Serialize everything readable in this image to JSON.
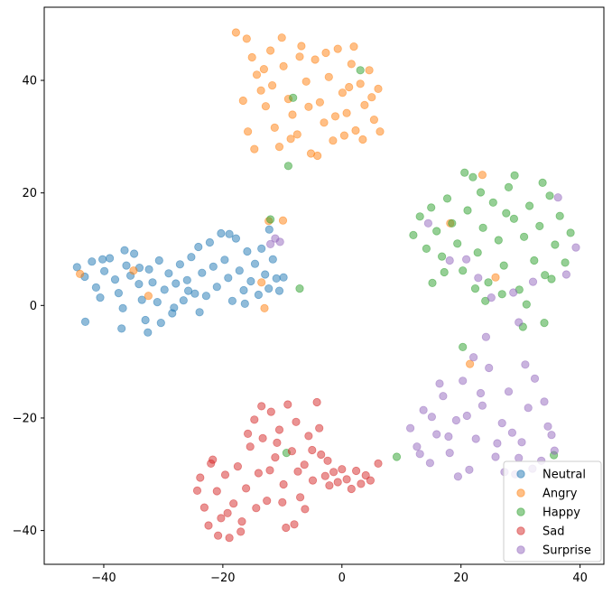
{
  "chart_data": {
    "type": "scatter",
    "title": "",
    "xlabel": "",
    "ylabel": "",
    "xlim": [
      -50,
      44
    ],
    "ylim": [
      -46,
      53
    ],
    "xticks": [
      -40,
      -20,
      0,
      20,
      40
    ],
    "yticks": [
      -40,
      -20,
      0,
      20,
      40
    ],
    "tick_labels": {
      "x": [
        "−40",
        "−20",
        "0",
        "20",
        "40"
      ],
      "y": [
        "−40",
        "−20",
        "0",
        "20",
        "40"
      ]
    },
    "grid": false,
    "legend_position": "lower-right",
    "marker_alpha": 0.5,
    "series": [
      {
        "name": "Neutral",
        "color": "#1f77b4",
        "points": [
          [
            -44.5,
            6.8
          ],
          [
            -43.2,
            5.1
          ],
          [
            -42.0,
            7.8
          ],
          [
            -41.3,
            3.2
          ],
          [
            -40.6,
            1.4
          ],
          [
            -39.9,
            6.1
          ],
          [
            -39.0,
            8.4
          ],
          [
            -38.1,
            4.6
          ],
          [
            -37.5,
            2.2
          ],
          [
            -36.8,
            -0.5
          ],
          [
            -36.2,
            7.1
          ],
          [
            -35.5,
            5.3
          ],
          [
            -34.9,
            9.2
          ],
          [
            -34.1,
            3.8
          ],
          [
            -33.6,
            1.0
          ],
          [
            -33.0,
            -2.6
          ],
          [
            -32.4,
            6.4
          ],
          [
            -31.8,
            4.1
          ],
          [
            -31.0,
            0.6
          ],
          [
            -30.4,
            -3.1
          ],
          [
            -29.8,
            2.8
          ],
          [
            -29.1,
            5.7
          ],
          [
            -28.5,
            -1.4
          ],
          [
            -27.9,
            3.9
          ],
          [
            -27.2,
            7.3
          ],
          [
            -26.6,
            0.9
          ],
          [
            -26.0,
            4.5
          ],
          [
            -25.3,
            8.6
          ],
          [
            -24.7,
            2.1
          ],
          [
            -24.1,
            10.4
          ],
          [
            -23.5,
            5.8
          ],
          [
            -22.8,
            1.7
          ],
          [
            -22.2,
            11.2
          ],
          [
            -21.6,
            6.9
          ],
          [
            -21.0,
            3.3
          ],
          [
            -20.3,
            12.8
          ],
          [
            -19.7,
            8.1
          ],
          [
            -19.1,
            4.9
          ],
          [
            -18.4,
            0.8
          ],
          [
            -17.8,
            11.9
          ],
          [
            -17.2,
            6.2
          ],
          [
            -16.5,
            2.7
          ],
          [
            -15.9,
            9.6
          ],
          [
            -15.3,
            4.3
          ],
          [
            -14.6,
            7.4
          ],
          [
            -14.0,
            1.9
          ],
          [
            -13.5,
            10.1
          ],
          [
            -12.9,
            5.5
          ],
          [
            -12.3,
            3.0
          ],
          [
            -11.6,
            8.2
          ],
          [
            -11.0,
            4.8
          ],
          [
            -10.5,
            2.6
          ],
          [
            -9.8,
            5.0
          ],
          [
            -12.2,
            13.5
          ],
          [
            -32.6,
            -4.8
          ],
          [
            -37.0,
            -4.1
          ],
          [
            -43.1,
            -2.9
          ],
          [
            -40.2,
            8.2
          ],
          [
            -36.5,
            9.8
          ],
          [
            -28.2,
            -0.4
          ],
          [
            -23.9,
            -1.2
          ],
          [
            -18.9,
            12.7
          ],
          [
            -16.3,
            0.3
          ],
          [
            -25.8,
            2.6
          ],
          [
            -30.7,
            8.0
          ],
          [
            -34.0,
            6.7
          ]
        ]
      },
      {
        "name": "Angry",
        "color": "#ff7f0e",
        "points": [
          [
            -16.0,
            47.4
          ],
          [
            -15.1,
            44.1
          ],
          [
            -14.3,
            41.0
          ],
          [
            -13.6,
            38.2
          ],
          [
            -12.8,
            35.4
          ],
          [
            -12.0,
            45.3
          ],
          [
            -11.3,
            31.6
          ],
          [
            -10.5,
            28.2
          ],
          [
            -9.8,
            42.5
          ],
          [
            -9.0,
            36.7
          ],
          [
            -8.3,
            33.9
          ],
          [
            -7.5,
            30.4
          ],
          [
            -6.8,
            46.1
          ],
          [
            -6.0,
            39.8
          ],
          [
            -5.2,
            27.0
          ],
          [
            -4.5,
            43.7
          ],
          [
            -3.7,
            36.1
          ],
          [
            -3.0,
            32.5
          ],
          [
            -2.2,
            40.6
          ],
          [
            -1.5,
            29.3
          ],
          [
            -0.7,
            45.6
          ],
          [
            0.1,
            37.8
          ],
          [
            0.8,
            34.2
          ],
          [
            1.6,
            42.9
          ],
          [
            2.3,
            31.1
          ],
          [
            3.1,
            39.4
          ],
          [
            3.8,
            35.6
          ],
          [
            4.6,
            41.8
          ],
          [
            5.4,
            33.0
          ],
          [
            6.1,
            38.5
          ],
          [
            -16.6,
            36.4
          ],
          [
            -15.8,
            30.9
          ],
          [
            -14.7,
            27.8
          ],
          [
            -13.1,
            42.0
          ],
          [
            -11.7,
            39.1
          ],
          [
            -10.1,
            47.6
          ],
          [
            -8.6,
            29.6
          ],
          [
            -7.1,
            44.2
          ],
          [
            -5.6,
            35.3
          ],
          [
            -4.1,
            26.6
          ],
          [
            -2.7,
            44.9
          ],
          [
            -1.1,
            33.6
          ],
          [
            0.4,
            30.2
          ],
          [
            2.0,
            46.0
          ],
          [
            3.5,
            29.5
          ],
          [
            5.0,
            37.0
          ],
          [
            6.4,
            30.9
          ],
          [
            1.2,
            38.8
          ],
          [
            -12.3,
            15.0
          ],
          [
            -9.9,
            15.1
          ],
          [
            -13.5,
            4.1
          ],
          [
            -13.0,
            -0.5
          ],
          [
            -35.0,
            6.2
          ],
          [
            -44.0,
            5.6
          ],
          [
            -32.5,
            1.7
          ],
          [
            18.2,
            14.6
          ],
          [
            23.6,
            23.2
          ],
          [
            21.5,
            -10.4
          ],
          [
            25.8,
            5.0
          ],
          [
            -17.8,
            48.5
          ]
        ]
      },
      {
        "name": "Happy",
        "color": "#2ca02c",
        "points": [
          [
            12.0,
            12.5
          ],
          [
            13.1,
            15.8
          ],
          [
            14.2,
            10.1
          ],
          [
            15.0,
            17.4
          ],
          [
            15.9,
            13.2
          ],
          [
            16.8,
            8.7
          ],
          [
            17.7,
            19.0
          ],
          [
            18.5,
            14.6
          ],
          [
            19.4,
            11.0
          ],
          [
            20.3,
            6.2
          ],
          [
            21.1,
            16.9
          ],
          [
            22.0,
            22.8
          ],
          [
            22.8,
            9.4
          ],
          [
            23.7,
            13.8
          ],
          [
            24.6,
            4.1
          ],
          [
            25.4,
            18.3
          ],
          [
            26.3,
            11.6
          ],
          [
            27.2,
            7.1
          ],
          [
            28.0,
            21.0
          ],
          [
            28.9,
            15.4
          ],
          [
            29.8,
            2.8
          ],
          [
            30.6,
            12.2
          ],
          [
            31.5,
            17.7
          ],
          [
            32.3,
            8.0
          ],
          [
            33.2,
            14.1
          ],
          [
            34.1,
            5.4
          ],
          [
            34.9,
            19.5
          ],
          [
            35.8,
            10.8
          ],
          [
            36.6,
            15.9
          ],
          [
            37.5,
            7.6
          ],
          [
            38.4,
            12.9
          ],
          [
            24.1,
            0.8
          ],
          [
            26.9,
            2.0
          ],
          [
            29.0,
            23.1
          ],
          [
            31.0,
            0.2
          ],
          [
            33.7,
            21.8
          ],
          [
            20.6,
            23.6
          ],
          [
            17.2,
            5.9
          ],
          [
            22.4,
            3.0
          ],
          [
            27.6,
            16.4
          ],
          [
            35.2,
            4.7
          ],
          [
            23.3,
            20.1
          ],
          [
            15.2,
            4.0
          ],
          [
            -8.2,
            36.9
          ],
          [
            -9.0,
            24.8
          ],
          [
            3.1,
            41.8
          ],
          [
            -7.1,
            3.0
          ],
          [
            -12.0,
            15.3
          ],
          [
            -9.3,
            -26.2
          ],
          [
            20.3,
            -7.4
          ],
          [
            9.2,
            -26.9
          ],
          [
            35.6,
            -26.6
          ],
          [
            30.4,
            -3.8
          ],
          [
            34.0,
            -3.1
          ]
        ]
      },
      {
        "name": "Sad",
        "color": "#d62728",
        "points": [
          [
            -23.8,
            -30.6
          ],
          [
            -23.1,
            -35.9
          ],
          [
            -22.4,
            -39.1
          ],
          [
            -21.7,
            -27.4
          ],
          [
            -21.0,
            -33.0
          ],
          [
            -20.3,
            -37.8
          ],
          [
            -19.6,
            -30.1
          ],
          [
            -18.9,
            -41.3
          ],
          [
            -18.2,
            -35.2
          ],
          [
            -17.5,
            -28.6
          ],
          [
            -16.8,
            -38.4
          ],
          [
            -16.1,
            -32.5
          ],
          [
            -15.4,
            -25.1
          ],
          [
            -14.7,
            -20.3
          ],
          [
            -14.0,
            -29.8
          ],
          [
            -13.3,
            -23.6
          ],
          [
            -12.6,
            -34.7
          ],
          [
            -11.9,
            -18.9
          ],
          [
            -11.2,
            -27.0
          ],
          [
            -10.5,
            -22.1
          ],
          [
            -9.8,
            -31.8
          ],
          [
            -9.1,
            -17.6
          ],
          [
            -8.4,
            -25.9
          ],
          [
            -7.7,
            -20.7
          ],
          [
            -7.0,
            -34.1
          ],
          [
            -6.3,
            -28.3
          ],
          [
            -5.6,
            -23.2
          ],
          [
            -4.9,
            -31.1
          ],
          [
            -4.2,
            -17.2
          ],
          [
            -3.5,
            -26.5
          ],
          [
            -2.8,
            -30.3
          ],
          [
            -2.1,
            -32.0
          ],
          [
            -1.4,
            -29.6
          ],
          [
            -0.7,
            -31.4
          ],
          [
            0.0,
            -29.1
          ],
          [
            0.8,
            -30.9
          ],
          [
            1.6,
            -32.6
          ],
          [
            2.4,
            -29.4
          ],
          [
            3.2,
            -31.7
          ],
          [
            4.0,
            -30.2
          ],
          [
            4.8,
            -31.1
          ],
          [
            6.1,
            -28.1
          ],
          [
            -22.0,
            -28.1
          ],
          [
            -19.2,
            -36.9
          ],
          [
            -17.0,
            -40.2
          ],
          [
            -12.1,
            -29.3
          ],
          [
            -10.0,
            -35.0
          ],
          [
            -8.0,
            -38.9
          ],
          [
            -6.2,
            -36.2
          ],
          [
            -5.0,
            -25.7
          ],
          [
            -13.5,
            -17.9
          ],
          [
            -15.8,
            -22.8
          ],
          [
            -20.8,
            -40.9
          ],
          [
            -7.4,
            -29.5
          ],
          [
            -10.9,
            -24.4
          ],
          [
            -3.8,
            -21.8
          ],
          [
            -9.4,
            -39.5
          ],
          [
            -14.4,
            -36.0
          ],
          [
            -24.3,
            -32.9
          ],
          [
            -2.4,
            -27.6
          ]
        ]
      },
      {
        "name": "Surprise",
        "color": "#9467bd",
        "points": [
          [
            11.5,
            -21.8
          ],
          [
            12.6,
            -25.1
          ],
          [
            13.7,
            -18.6
          ],
          [
            14.8,
            -28.0
          ],
          [
            15.9,
            -22.9
          ],
          [
            17.0,
            -16.1
          ],
          [
            18.1,
            -26.2
          ],
          [
            19.2,
            -20.4
          ],
          [
            20.3,
            -13.4
          ],
          [
            21.4,
            -29.2
          ],
          [
            22.5,
            -23.7
          ],
          [
            23.6,
            -17.8
          ],
          [
            24.7,
            -11.1
          ],
          [
            25.8,
            -26.9
          ],
          [
            26.9,
            -20.9
          ],
          [
            28.0,
            -15.3
          ],
          [
            29.1,
            -30.0
          ],
          [
            30.2,
            -24.3
          ],
          [
            31.3,
            -18.2
          ],
          [
            32.4,
            -13.0
          ],
          [
            33.5,
            -27.6
          ],
          [
            34.6,
            -21.5
          ],
          [
            35.7,
            -25.8
          ],
          [
            24.2,
            -5.6
          ],
          [
            22.1,
            -9.2
          ],
          [
            19.5,
            -30.4
          ],
          [
            27.3,
            -29.6
          ],
          [
            30.8,
            -10.5
          ],
          [
            16.4,
            -13.9
          ],
          [
            13.1,
            -26.4
          ],
          [
            34.0,
            -17.1
          ],
          [
            28.6,
            -22.6
          ],
          [
            21.0,
            -19.6
          ],
          [
            26.1,
            -24.5
          ],
          [
            17.9,
            -23.3
          ],
          [
            32.0,
            -29.0
          ],
          [
            23.3,
            -15.6
          ],
          [
            29.7,
            -27.1
          ],
          [
            15.1,
            -19.8
          ],
          [
            35.2,
            -23.0
          ],
          [
            -11.2,
            11.9
          ],
          [
            -10.4,
            11.3
          ],
          [
            -12.0,
            10.9
          ],
          [
            20.9,
            8.2
          ],
          [
            25.1,
            1.4
          ],
          [
            28.8,
            2.3
          ],
          [
            32.1,
            4.2
          ],
          [
            37.7,
            5.5
          ],
          [
            39.3,
            10.3
          ],
          [
            36.3,
            19.2
          ],
          [
            14.5,
            14.6
          ],
          [
            29.7,
            -3.0
          ],
          [
            18.1,
            8.0
          ],
          [
            22.9,
            4.9
          ]
        ]
      }
    ]
  }
}
